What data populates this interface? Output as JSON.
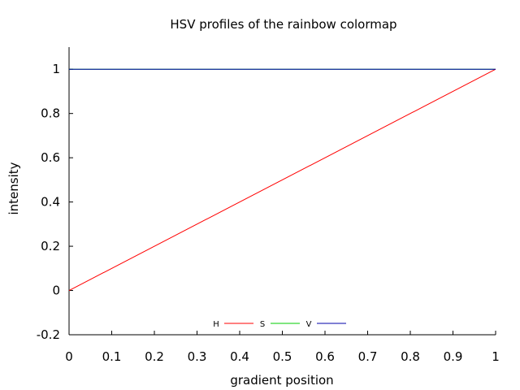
{
  "chart_data": {
    "type": "line",
    "title": "HSV profiles of the rainbow colormap",
    "xlabel": "gradient position",
    "ylabel": "intensity",
    "xlim": [
      0,
      1
    ],
    "ylim": [
      -0.2,
      1.1
    ],
    "x_ticks": [
      "0",
      "0.1",
      "0.2",
      "0.3",
      "0.4",
      "0.5",
      "0.6",
      "0.7",
      "0.8",
      "0.9",
      "1"
    ],
    "y_ticks": [
      "-0.2",
      "0",
      "0.2",
      "0.4",
      "0.6",
      "0.8",
      "1"
    ],
    "legend_position": "bottom-center",
    "series": [
      {
        "name": "H",
        "color": "#ff0000",
        "x": [
          0,
          1
        ],
        "y": [
          0,
          1
        ]
      },
      {
        "name": "S",
        "color": "#00cc00",
        "x": [
          0,
          1
        ],
        "y": [
          1,
          1
        ]
      },
      {
        "name": "V",
        "color": "#0000aa",
        "x": [
          0,
          1
        ],
        "y": [
          1,
          1
        ]
      }
    ]
  }
}
